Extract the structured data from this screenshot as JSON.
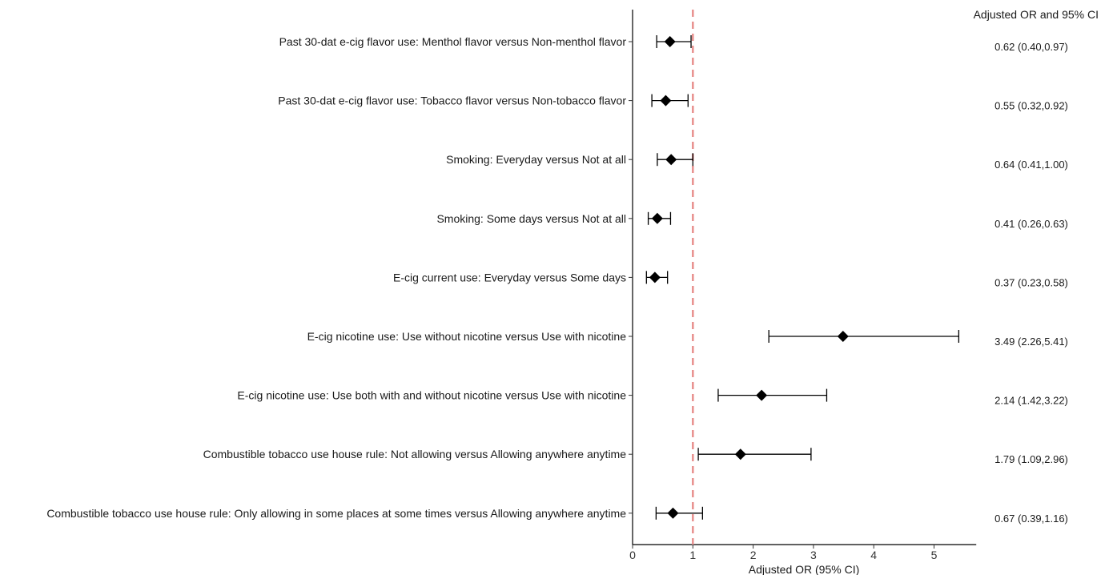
{
  "chart_data": {
    "type": "forest",
    "xlabel": "Adjusted OR (95% CI)",
    "xlim": [
      0,
      5.7
    ],
    "xticks": [
      0,
      1,
      2,
      3,
      4,
      5
    ],
    "reference_line": 1,
    "reference_color": "#e8908e",
    "marker_color": "#000000",
    "ci_column_header": "Adjusted OR and 95% CI",
    "rows": [
      {
        "label": "Past 30-dat e-cig flavor use: Menthol flavor versus Non-menthol flavor",
        "or": 0.62,
        "lo": 0.4,
        "hi": 0.97,
        "text": "0.62 (0.40,0.97)"
      },
      {
        "label": "Past 30-dat e-cig flavor use: Tobacco flavor versus Non-tobacco flavor",
        "or": 0.55,
        "lo": 0.32,
        "hi": 0.92,
        "text": "0.55 (0.32,0.92)"
      },
      {
        "label": "Smoking: Everyday versus Not at all",
        "or": 0.64,
        "lo": 0.41,
        "hi": 1.0,
        "text": "0.64 (0.41,1.00)"
      },
      {
        "label": "Smoking: Some days versus Not at all",
        "or": 0.41,
        "lo": 0.26,
        "hi": 0.63,
        "text": "0.41 (0.26,0.63)"
      },
      {
        "label": "E-cig current use: Everyday versus Some days",
        "or": 0.37,
        "lo": 0.23,
        "hi": 0.58,
        "text": "0.37 (0.23,0.58)"
      },
      {
        "label": "E-cig nicotine use: Use without nicotine versus Use with nicotine",
        "or": 3.49,
        "lo": 2.26,
        "hi": 5.41,
        "text": "3.49 (2.26,5.41)"
      },
      {
        "label": "E-cig nicotine use: Use both with and without nicotine versus Use with nicotine",
        "or": 2.14,
        "lo": 1.42,
        "hi": 3.22,
        "text": "2.14 (1.42,3.22)"
      },
      {
        "label": "Combustible tobacco use house rule: Not allowing versus Allowing anywhere anytime",
        "or": 1.79,
        "lo": 1.09,
        "hi": 2.96,
        "text": "1.79 (1.09,2.96)"
      },
      {
        "label": "Combustible tobacco use house rule: Only allowing in some places at some times versus Allowing anywhere anytime",
        "or": 0.67,
        "lo": 0.39,
        "hi": 1.16,
        "text": "0.67 (0.39,1.16)"
      }
    ]
  }
}
